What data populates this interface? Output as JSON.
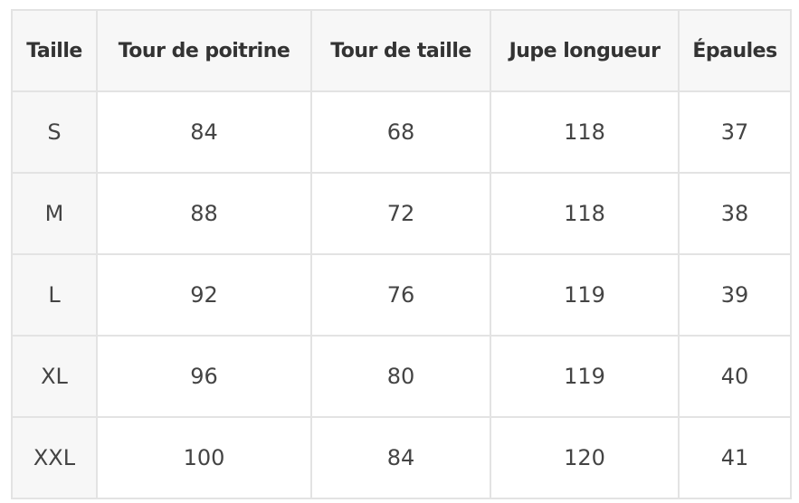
{
  "table": {
    "header": [
      "Taille",
      "Tour de poitrine",
      "Tour de taille",
      "Jupe longueur",
      "Épaules"
    ],
    "rows": [
      [
        "S",
        84,
        68,
        118,
        37
      ],
      [
        "M",
        88,
        72,
        118,
        38
      ],
      [
        "L",
        92,
        76,
        119,
        39
      ],
      [
        "XL",
        96,
        80,
        119,
        40
      ],
      [
        "XXL",
        100,
        84,
        120,
        41
      ]
    ]
  }
}
